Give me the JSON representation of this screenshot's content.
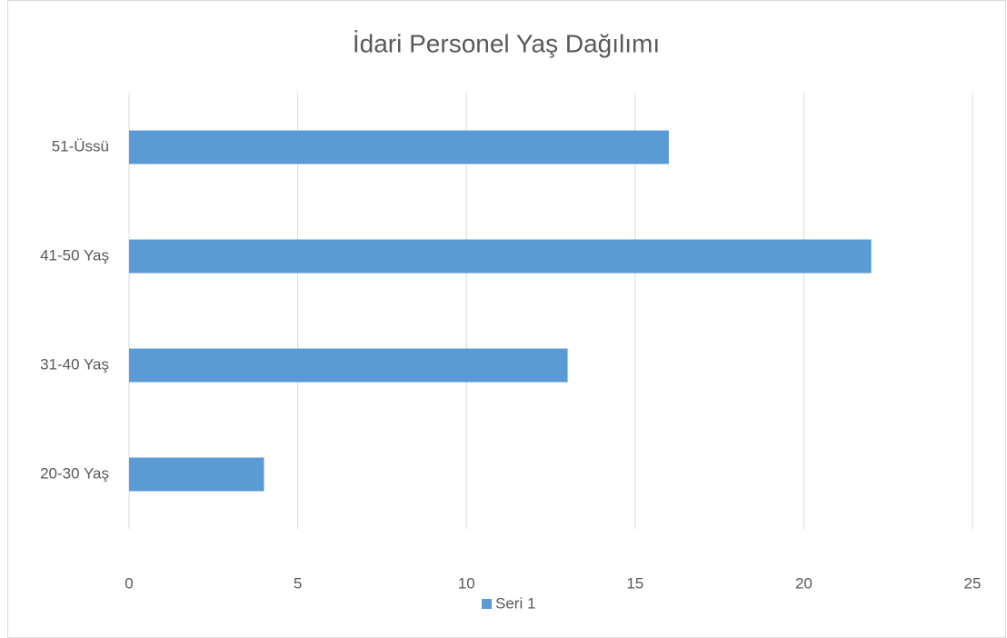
{
  "chart_data": {
    "type": "bar",
    "orientation": "horizontal",
    "title": "İdari Personel Yaş Dağılımı",
    "categories": [
      "20-30 Yaş",
      "31-40 Yaş",
      "41-50 Yaş",
      "51-Üssü"
    ],
    "series": [
      {
        "name": "Seri 1",
        "color": "#5b9bd5",
        "values": [
          4,
          13,
          22,
          16
        ]
      }
    ],
    "xlim": [
      0,
      25
    ],
    "xticks": [
      0,
      5,
      10,
      15,
      20,
      25
    ],
    "grid": true,
    "legend": "bottom"
  }
}
